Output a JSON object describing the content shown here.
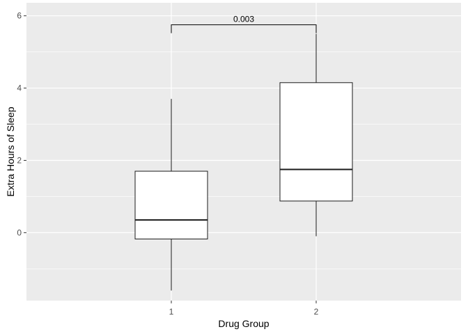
{
  "chart_data": {
    "type": "boxplot",
    "title": "",
    "xlabel": "Drug Group",
    "ylabel": "Extra Hours of Sleep",
    "categories": [
      "1",
      "2"
    ],
    "boxes": [
      {
        "category": "1",
        "min": -1.6,
        "q1": -0.175,
        "median": 0.35,
        "q3": 1.7,
        "max": 3.7
      },
      {
        "category": "2",
        "min": -0.1,
        "q1": 0.875,
        "median": 1.75,
        "q3": 4.15,
        "max": 5.5
      }
    ],
    "yticks": [
      0,
      2,
      4,
      6
    ],
    "ylim": [
      -1.88,
      6.36
    ],
    "comparison": {
      "groups": [
        "1",
        "2"
      ],
      "label": "0.003",
      "y": 5.75
    },
    "grid": true,
    "legend": "none",
    "colors": {
      "panel_background": "#ebebeb",
      "grid": "#ffffff",
      "box_fill": "#ffffff",
      "box_stroke": "#1a1a1a"
    }
  }
}
